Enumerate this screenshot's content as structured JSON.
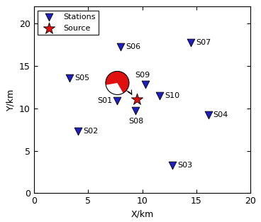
{
  "chart_data": {
    "type": "scatter",
    "xlabel": "X/km",
    "ylabel": "Y/km",
    "xlim": [
      0,
      20
    ],
    "ylim": [
      0,
      22
    ],
    "xticks": [
      0,
      5,
      10,
      15,
      20
    ],
    "yticks": [
      0,
      5,
      10,
      15,
      20
    ],
    "grid": false,
    "legend": "upper left",
    "series": [
      {
        "name": "Stations",
        "color": "#1f1fbf",
        "marker": "v",
        "x": [
          7.7,
          4.1,
          12.8,
          16.1,
          3.3,
          8.0,
          14.5,
          9.4,
          10.3,
          11.6
        ],
        "values": [
          10.9,
          7.3,
          3.3,
          9.2,
          13.6,
          17.3,
          17.8,
          9.7,
          12.8,
          11.5
        ],
        "labels": [
          "S01",
          "S02",
          "S03",
          "S04",
          "S05",
          "S06",
          "S07",
          "S08",
          "S09",
          "S10"
        ]
      },
      {
        "name": "Source",
        "color": "#e01010",
        "marker": "*",
        "x": [
          9.5
        ],
        "values": [
          11.1
        ]
      }
    ]
  }
}
